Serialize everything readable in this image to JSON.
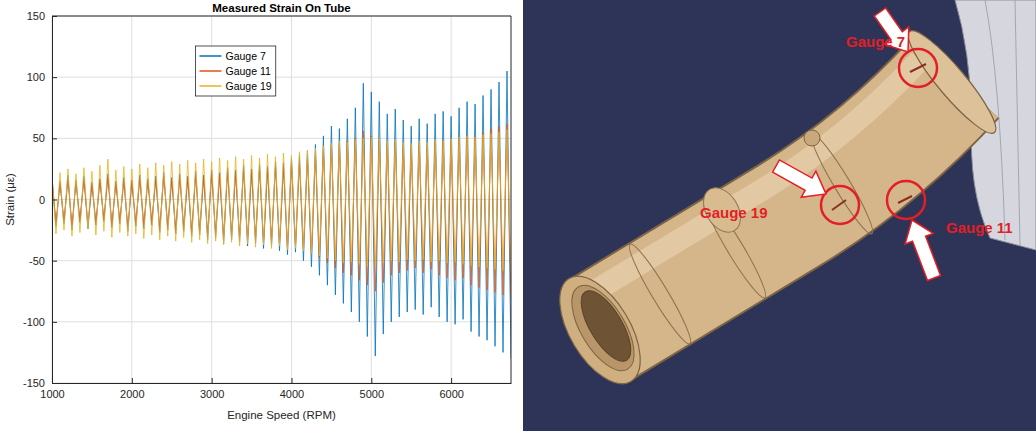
{
  "chart_data": {
    "type": "line",
    "title": "Measured Strain On Tube",
    "x_label": "Engine Speed (RPM)",
    "y_label": "Strain (με)",
    "x": [
      1000,
      1050,
      1100,
      1150,
      1200,
      1250,
      1300,
      1350,
      1400,
      1450,
      1500,
      1550,
      1600,
      1650,
      1700,
      1750,
      1800,
      1850,
      1900,
      1950,
      2000,
      2050,
      2100,
      2150,
      2200,
      2250,
      2300,
      2350,
      2400,
      2450,
      2500,
      2550,
      2600,
      2650,
      2700,
      2750,
      2800,
      2850,
      2900,
      2950,
      3000,
      3050,
      3100,
      3150,
      3200,
      3250,
      3300,
      3350,
      3400,
      3450,
      3500,
      3550,
      3600,
      3650,
      3700,
      3750,
      3800,
      3850,
      3900,
      3950,
      4000,
      4050,
      4100,
      4150,
      4200,
      4250,
      4300,
      4350,
      4400,
      4450,
      4500,
      4550,
      4600,
      4650,
      4700,
      4750,
      4800,
      4850,
      4900,
      4950,
      5000,
      5050,
      5100,
      5150,
      5200,
      5250,
      5300,
      5350,
      5400,
      5450,
      5500,
      5550,
      5600,
      5650,
      5700,
      5750,
      5800,
      5850,
      5900,
      5950,
      6000,
      6050,
      6100,
      6150,
      6200,
      6250,
      6300,
      6350,
      6400,
      6450,
      6500,
      6550,
      6600,
      6650,
      6700,
      6750
    ],
    "xlim": [
      1000,
      6750
    ],
    "ylim": [
      -150,
      150
    ],
    "xticks": [
      1000,
      2000,
      3000,
      4000,
      5000,
      6000
    ],
    "yticks": [
      -150,
      -100,
      -50,
      0,
      50,
      100,
      150
    ],
    "grid": true,
    "legend": "top",
    "series": [
      {
        "name": "Gauge 7",
        "color": "#0072bd",
        "values": [
          18,
          -22,
          15,
          -20,
          20,
          -25,
          16,
          -19,
          19,
          -24,
          14,
          -21,
          17,
          -18,
          21,
          -23,
          15,
          -20,
          18,
          -26,
          16,
          -22,
          20,
          -24,
          17,
          -21,
          19,
          -27,
          22,
          -25,
          18,
          -28,
          21,
          -26,
          19,
          -30,
          23,
          -29,
          20,
          -33,
          24,
          -31,
          22,
          -36,
          26,
          -33,
          24,
          -35,
          28,
          -38,
          25,
          -36,
          29,
          -40,
          27,
          -38,
          31,
          -42,
          30,
          -45,
          34,
          -43,
          36,
          -50,
          40,
          -55,
          45,
          -62,
          52,
          -70,
          60,
          -78,
          58,
          -85,
          66,
          -92,
          75,
          -100,
          95,
          -112,
          88,
          -128,
          80,
          -110,
          70,
          -100,
          74,
          -96,
          65,
          -92,
          60,
          -90,
          66,
          -94,
          62,
          -88,
          70,
          -96,
          72,
          -100,
          68,
          -102,
          75,
          -98,
          80,
          -108,
          78,
          -112,
          85,
          -115,
          90,
          -120,
          96,
          -125,
          105,
          -130
        ]
      },
      {
        "name": "Gauge 11",
        "color": "#d95319",
        "values": [
          15,
          -18,
          13,
          -17,
          16,
          -21,
          14,
          -16,
          16,
          -20,
          12,
          -18,
          15,
          -16,
          18,
          -20,
          13,
          -17,
          15,
          -22,
          14,
          -19,
          17,
          -20,
          15,
          -18,
          16,
          -23,
          19,
          -21,
          16,
          -24,
          18,
          -22,
          17,
          -26,
          20,
          -25,
          18,
          -28,
          21,
          -27,
          19,
          -30,
          23,
          -28,
          21,
          -30,
          24,
          -32,
          22,
          -31,
          25,
          -34,
          24,
          -33,
          27,
          -36,
          26,
          -38,
          29,
          -37,
          30,
          -40,
          33,
          -44,
          36,
          -48,
          40,
          -52,
          44,
          -56,
          45,
          -60,
          48,
          -62,
          50,
          -66,
          56,
          -70,
          52,
          -75,
          48,
          -68,
          45,
          -62,
          47,
          -60,
          42,
          -58,
          40,
          -56,
          44,
          -60,
          42,
          -57,
          46,
          -62,
          48,
          -64,
          46,
          -66,
          50,
          -64,
          52,
          -70,
          51,
          -72,
          55,
          -74,
          58,
          -76,
          60,
          -78,
          62,
          -80
        ]
      },
      {
        "name": "Gauge 19",
        "color": "#edb120",
        "values": [
          20,
          -28,
          22,
          -25,
          25,
          -30,
          21,
          -27,
          26,
          -24,
          23,
          -29,
          28,
          -26,
          33,
          -31,
          24,
          -27,
          27,
          -30,
          25,
          -28,
          29,
          -32,
          26,
          -29,
          30,
          -33,
          28,
          -30,
          31,
          -34,
          29,
          -31,
          32,
          -35,
          30,
          -33,
          33,
          -36,
          31,
          -34,
          34,
          -37,
          32,
          -35,
          35,
          -38,
          33,
          -36,
          36,
          -39,
          34,
          -37,
          37,
          -40,
          35,
          -38,
          38,
          -41,
          36,
          -40,
          39,
          -42,
          40,
          -44,
          42,
          -46,
          44,
          -48,
          46,
          -50,
          48,
          -52,
          47,
          -51,
          49,
          -53,
          50,
          -55,
          51,
          -54,
          50,
          -52,
          48,
          -50,
          49,
          -51,
          47,
          -49,
          46,
          -50,
          48,
          -49,
          47,
          -51,
          49,
          -50,
          48,
          -52,
          50,
          -51,
          51,
          -53,
          52,
          -54,
          51,
          -55,
          53,
          -56,
          54,
          -57,
          55,
          -58,
          57,
          -60
        ]
      }
    ]
  },
  "diagram": {
    "labels": [
      "Gauge 7",
      "Gauge 19",
      "Gauge 11"
    ]
  }
}
